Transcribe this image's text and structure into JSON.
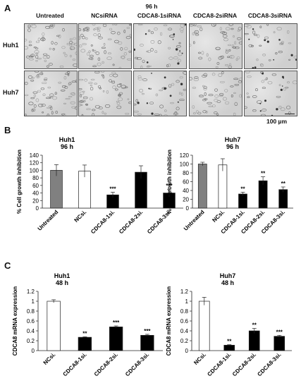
{
  "panels": {
    "A": "A",
    "B": "B",
    "C": "C"
  },
  "panel_a": {
    "timepoint": "96 h",
    "columns": [
      "Untreated",
      "NCsiRNA",
      "CDCA8-1siRNA",
      "CDCA8-2siRNA",
      "CDCA8-3siRNA"
    ],
    "rows": [
      "Huh1",
      "Huh7"
    ],
    "scale_label": "100 µm",
    "cell_density": [
      [
        0.9,
        0.9,
        0.5,
        0.75,
        0.4
      ],
      [
        0.9,
        0.85,
        0.45,
        0.7,
        0.4
      ]
    ]
  },
  "chart_data": [
    {
      "type": "bar",
      "title": "Huh1",
      "subtitle": "96 h",
      "ylabel": "% Cell growth inhibition",
      "xlabel": "",
      "categories": [
        "Untreated",
        "NCsi.",
        "CDCA8-1si.",
        "CDCA8-2si.",
        "CDCA8-3si."
      ],
      "values": [
        100,
        98,
        35,
        95,
        40
      ],
      "errors": [
        15,
        16,
        7,
        17,
        10
      ],
      "significance": [
        "",
        "",
        "***",
        "",
        "***"
      ],
      "bar_colors": [
        "#808080",
        "#ffffff",
        "#000000",
        "#000000",
        "#000000"
      ],
      "ylim": [
        0,
        140
      ],
      "yticks": [
        0,
        20,
        40,
        60,
        80,
        100,
        120,
        140
      ],
      "grid": false
    },
    {
      "type": "bar",
      "title": "Huh7",
      "subtitle": "96 h",
      "ylabel": "% Cell growth inhibition",
      "xlabel": "",
      "categories": [
        "Untreated",
        "NCsi.",
        "CDCA8-1si.",
        "CDCA8-2si.",
        "CDCA8-3si."
      ],
      "values": [
        100,
        98,
        32,
        62,
        42
      ],
      "errors": [
        4,
        14,
        4,
        9,
        6
      ],
      "significance": [
        "",
        "",
        "**",
        "**",
        "**"
      ],
      "bar_colors": [
        "#808080",
        "#ffffff",
        "#000000",
        "#000000",
        "#000000"
      ],
      "ylim": [
        0,
        120
      ],
      "yticks": [
        0,
        20,
        40,
        60,
        80,
        100,
        120
      ],
      "grid": false
    },
    {
      "type": "bar",
      "title": "Huh1",
      "subtitle": "48 h",
      "ylabel": "CDCA8 mRNA expression",
      "xlabel": "",
      "categories": [
        "NCsi.",
        "CDCA8-1si.",
        "CDCA8-2si.",
        "CDCA8-3si."
      ],
      "values": [
        1.0,
        0.27,
        0.48,
        0.31
      ],
      "errors": [
        0.03,
        0.01,
        0.02,
        0.02
      ],
      "significance": [
        "",
        "**",
        "***",
        "***"
      ],
      "bar_colors": [
        "#ffffff",
        "#000000",
        "#000000",
        "#000000"
      ],
      "ylim": [
        0,
        1.2
      ],
      "yticks": [
        0,
        0.2,
        0.4,
        0.6,
        0.8,
        1,
        1.2
      ],
      "grid": false
    },
    {
      "type": "bar",
      "title": "Huh7",
      "subtitle": "48 h",
      "ylabel": "CDCA8 mRNA expression",
      "xlabel": "",
      "categories": [
        "NCsi.",
        "CDCA8-1si.",
        "CDCA8-2si.",
        "CDCA8-3si."
      ],
      "values": [
        1.0,
        0.11,
        0.4,
        0.29
      ],
      "errors": [
        0.08,
        0.01,
        0.05,
        0.02
      ],
      "significance": [
        "",
        "**",
        "**",
        "***"
      ],
      "bar_colors": [
        "#ffffff",
        "#000000",
        "#000000",
        "#000000"
      ],
      "ylim": [
        0,
        1.2
      ],
      "yticks": [
        0,
        0.2,
        0.4,
        0.6,
        0.8,
        1,
        1.2
      ],
      "grid": false
    }
  ]
}
